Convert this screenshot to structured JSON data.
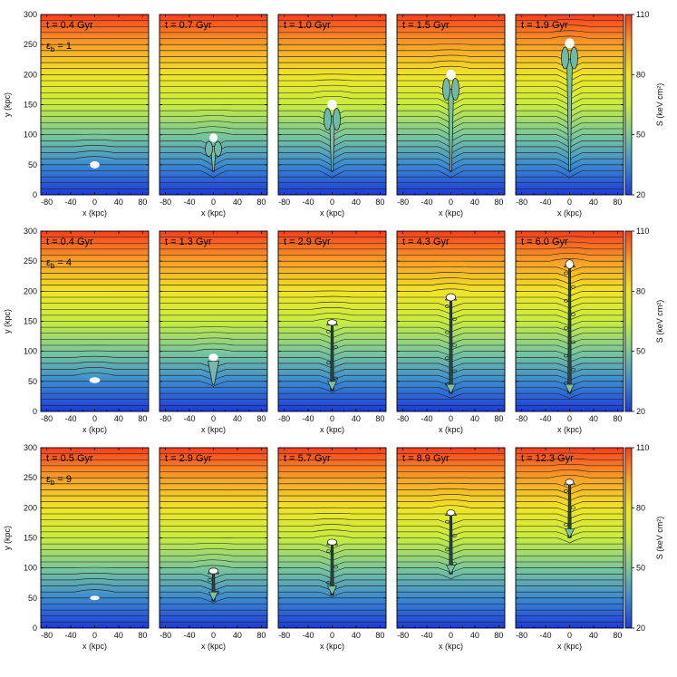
{
  "chart_data": {
    "type": "heatmap",
    "xlabel": "x (kpc)",
    "ylabel": "y (kpc)",
    "colorbar_label": "S (keV cm²)",
    "xlim": [
      -90,
      90
    ],
    "ylim": [
      0,
      300
    ],
    "x_ticks": [
      -80,
      -40,
      0,
      40,
      80
    ],
    "x_tick_labels": [
      "-80",
      "-40",
      "0",
      "40",
      "80"
    ],
    "y_ticks": [
      0,
      50,
      100,
      150,
      200,
      250,
      300
    ],
    "y_tick_labels": [
      "0",
      "50",
      "100",
      "150",
      "200",
      "250",
      "300"
    ],
    "colorbar_range": [
      20,
      110
    ],
    "colorbar_ticks": [
      20,
      50,
      80,
      110
    ],
    "colorbar_tick_labels": [
      "20",
      "50",
      "80",
      "110"
    ],
    "colormap": [
      "#1e3ad8",
      "#3c8ad0",
      "#7cc89a",
      "#c8ec40",
      "#f0e428",
      "#f8a028",
      "#f83e1e"
    ],
    "rows": [
      {
        "epsilon_label": "εb = 1",
        "panels": [
          {
            "time": "t = 0.4 Gyr",
            "bubble_y": 50,
            "bubble_w": 7,
            "bubble_h": 5,
            "trail_from": 40,
            "trail_to": 50,
            "trail_type": "none"
          },
          {
            "time": "t = 0.7 Gyr",
            "bubble_y": 95,
            "bubble_w": 6,
            "bubble_h": 6,
            "trail_from": 40,
            "trail_to": 90,
            "trail_type": "taper"
          },
          {
            "time": "t = 1.0 Gyr",
            "bubble_y": 150,
            "bubble_w": 7,
            "bubble_h": 7,
            "trail_from": 40,
            "trail_to": 140,
            "trail_type": "taper"
          },
          {
            "time": "t = 1.5 Gyr",
            "bubble_y": 200,
            "bubble_w": 7,
            "bubble_h": 7,
            "trail_from": 40,
            "trail_to": 185,
            "trail_type": "taper"
          },
          {
            "time": "t = 1.9 Gyr",
            "bubble_y": 252,
            "bubble_w": 7,
            "bubble_h": 7,
            "trail_from": 40,
            "trail_to": 235,
            "trail_type": "taper"
          }
        ]
      },
      {
        "epsilon_label": "εb = 4",
        "panels": [
          {
            "time": "t = 0.4 Gyr",
            "bubble_y": 52,
            "bubble_w": 8,
            "bubble_h": 4,
            "trail_from": 45,
            "trail_to": 52,
            "trail_type": "none"
          },
          {
            "time": "t = 1.3 Gyr",
            "bubble_y": 90,
            "bubble_w": 7,
            "bubble_h": 5,
            "trail_from": 45,
            "trail_to": 85,
            "trail_type": "cone"
          },
          {
            "time": "t = 2.9 Gyr",
            "bubble_y": 148,
            "bubble_w": 7,
            "bubble_h": 4,
            "trail_from": 35,
            "trail_to": 145,
            "trail_type": "jet"
          },
          {
            "time": "t = 4.3 Gyr",
            "bubble_y": 190,
            "bubble_w": 7,
            "bubble_h": 5,
            "trail_from": 30,
            "trail_to": 185,
            "trail_type": "jet"
          },
          {
            "time": "t = 6.0 Gyr",
            "bubble_y": 245,
            "bubble_w": 6,
            "bubble_h": 6,
            "trail_from": 30,
            "trail_to": 240,
            "trail_type": "jet"
          }
        ]
      },
      {
        "epsilon_label": "εb = 9",
        "panels": [
          {
            "time": "t = 0.5 Gyr",
            "bubble_y": 50,
            "bubble_w": 7,
            "bubble_h": 3,
            "trail_from": 45,
            "trail_to": 50,
            "trail_type": "none"
          },
          {
            "time": "t = 2.9 Gyr",
            "bubble_y": 95,
            "bubble_w": 7,
            "bubble_h": 4,
            "trail_from": 45,
            "trail_to": 92,
            "trail_type": "jet"
          },
          {
            "time": "t = 5.7 Gyr",
            "bubble_y": 143,
            "bubble_w": 7,
            "bubble_h": 4,
            "trail_from": 55,
            "trail_to": 140,
            "trail_type": "jet"
          },
          {
            "time": "t = 8.9 Gyr",
            "bubble_y": 192,
            "bubble_w": 6,
            "bubble_h": 4,
            "trail_from": 90,
            "trail_to": 188,
            "trail_type": "jet"
          },
          {
            "time": "t = 12.3 Gyr",
            "bubble_y": 243,
            "bubble_w": 6,
            "bubble_h": 4,
            "trail_from": 150,
            "trail_to": 240,
            "trail_type": "jet"
          }
        ]
      }
    ]
  }
}
